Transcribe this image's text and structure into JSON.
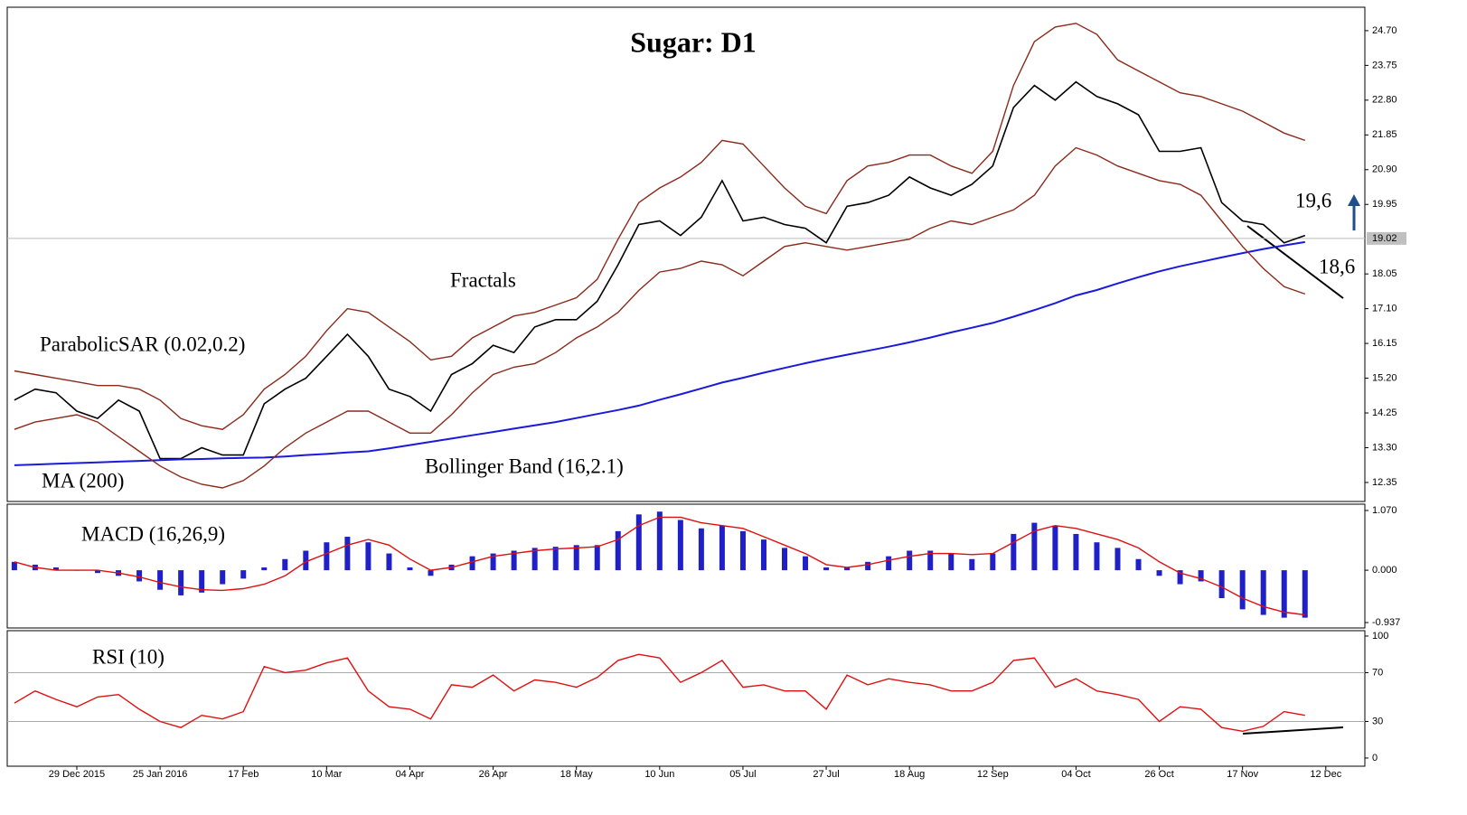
{
  "chart_data": [
    {
      "type": "line",
      "title": "Sugar: D1",
      "annotations": [
        "ParabolicSAR (0.02,0.2)",
        "MA (200)",
        "Fractals",
        "Bollinger Band (16,2.1)",
        "19,6",
        "18,6"
      ],
      "current_price": 19.02,
      "ylim": [
        11.83,
        25.34
      ],
      "yticks": [
        12.35,
        {
          "value": 13.3,
          "label": "13.30"
        },
        14.25,
        {
          "value": 15.2,
          "label": "15.20"
        },
        16.15,
        {
          "value": 17.1,
          "label": "17.10"
        },
        18.05,
        19.95,
        {
          "value": 20.9,
          "label": "20.90"
        },
        21.85,
        {
          "value": 22.8,
          "label": "22.80"
        },
        23.75,
        {
          "value": 24.7,
          "label": "24.70"
        }
      ],
      "series": [
        {
          "name": "Close",
          "color": "#000000",
          "values": [
            14.6,
            14.9,
            14.8,
            14.3,
            14.1,
            14.6,
            14.3,
            13.0,
            13.0,
            13.3,
            13.1,
            13.1,
            14.5,
            14.9,
            15.2,
            15.8,
            16.4,
            15.8,
            14.9,
            14.7,
            14.3,
            15.3,
            15.6,
            16.1,
            15.9,
            16.6,
            16.8,
            16.8,
            17.3,
            18.3,
            19.4,
            19.5,
            19.1,
            19.6,
            20.6,
            19.5,
            19.6,
            19.4,
            19.3,
            18.9,
            19.9,
            20.0,
            20.2,
            20.7,
            20.4,
            20.2,
            20.5,
            21.0,
            22.6,
            23.2,
            22.8,
            23.3,
            22.9,
            22.7,
            22.4,
            21.4,
            21.4,
            21.5,
            20.0,
            19.5,
            19.4,
            18.9,
            19.1,
            null
          ]
        },
        {
          "name": "MA (200)",
          "color": "#1a1adc",
          "values": [
            12.82,
            12.84,
            12.86,
            12.88,
            12.9,
            12.92,
            12.94,
            12.96,
            12.98,
            12.99,
            13.01,
            13.02,
            13.03,
            13.06,
            13.1,
            13.13,
            13.17,
            13.2,
            13.28,
            13.37,
            13.46,
            13.55,
            13.64,
            13.73,
            13.82,
            13.91,
            14.0,
            14.11,
            14.22,
            14.33,
            14.45,
            14.61,
            14.76,
            14.92,
            15.08,
            15.21,
            15.35,
            15.48,
            15.61,
            15.73,
            15.84,
            15.95,
            16.06,
            16.18,
            16.31,
            16.45,
            16.58,
            16.71,
            16.88,
            17.06,
            17.25,
            17.46,
            17.61,
            17.79,
            17.96,
            18.12,
            18.26,
            18.38,
            18.5,
            18.62,
            18.73,
            18.83,
            18.92,
            null
          ]
        },
        {
          "name": "Bollinger Upper",
          "color": "#8b2a1a",
          "values": [
            15.4,
            15.3,
            15.2,
            15.1,
            15.0,
            15.0,
            14.9,
            14.6,
            14.1,
            13.9,
            13.8,
            14.2,
            14.9,
            15.3,
            15.8,
            16.5,
            17.1,
            17.0,
            16.6,
            16.2,
            15.7,
            15.8,
            16.3,
            16.6,
            16.9,
            17.0,
            17.2,
            17.4,
            17.9,
            19.0,
            20.0,
            20.4,
            20.7,
            21.1,
            21.7,
            21.6,
            21.0,
            20.4,
            19.9,
            19.7,
            20.6,
            21.0,
            21.1,
            21.3,
            21.3,
            21.0,
            20.8,
            21.4,
            23.2,
            24.4,
            24.8,
            24.9,
            24.6,
            23.9,
            23.6,
            23.3,
            23.0,
            22.9,
            22.7,
            22.5,
            22.2,
            21.9,
            21.7,
            null
          ]
        },
        {
          "name": "Bollinger Lower",
          "color": "#8b2a1a",
          "values": [
            13.8,
            14.0,
            14.1,
            14.2,
            14.0,
            13.6,
            13.2,
            12.8,
            12.5,
            12.3,
            12.2,
            12.4,
            12.8,
            13.3,
            13.7,
            14.0,
            14.3,
            14.3,
            14.0,
            13.7,
            13.7,
            14.2,
            14.8,
            15.3,
            15.5,
            15.6,
            15.9,
            16.3,
            16.6,
            17.0,
            17.6,
            18.1,
            18.2,
            18.4,
            18.3,
            18.0,
            18.4,
            18.8,
            18.9,
            18.8,
            18.7,
            18.8,
            18.9,
            19.0,
            19.3,
            19.5,
            19.4,
            19.6,
            19.8,
            20.2,
            21.0,
            21.5,
            21.3,
            21.0,
            20.8,
            20.6,
            20.5,
            20.2,
            19.5,
            18.8,
            18.2,
            17.7,
            17.5,
            null
          ]
        }
      ]
    },
    {
      "type": "bar",
      "title": "MACD (16,26,9)",
      "ylim": [
        -1.034,
        1.183
      ],
      "yticks": [
        {
          "value": -0.937,
          "label": "-0.937"
        },
        {
          "value": 0,
          "label": "0.000"
        },
        {
          "value": 1.07,
          "label": "1.070"
        }
      ],
      "series": [
        {
          "name": "MACD",
          "style": "bar",
          "color": "#2020c8",
          "values": [
            0.15,
            0.1,
            0.05,
            0.0,
            -0.05,
            -0.1,
            -0.2,
            -0.35,
            -0.45,
            -0.4,
            -0.25,
            -0.15,
            0.05,
            0.2,
            0.35,
            0.5,
            0.6,
            0.5,
            0.3,
            0.05,
            -0.1,
            0.1,
            0.25,
            0.3,
            0.35,
            0.4,
            0.42,
            0.45,
            0.45,
            0.7,
            1.0,
            1.05,
            0.9,
            0.75,
            0.8,
            0.7,
            0.55,
            0.4,
            0.25,
            0.05,
            0.05,
            0.15,
            0.25,
            0.35,
            0.35,
            0.3,
            0.2,
            0.3,
            0.65,
            0.85,
            0.8,
            0.65,
            0.5,
            0.4,
            0.2,
            -0.1,
            -0.25,
            -0.2,
            -0.5,
            -0.7,
            -0.8,
            -0.85,
            -0.85,
            null
          ]
        },
        {
          "name": "Signal",
          "style": "line",
          "color": "#e01010",
          "values": [
            0.15,
            0.05,
            0.0,
            0.0,
            0.0,
            -0.05,
            -0.12,
            -0.22,
            -0.3,
            -0.35,
            -0.36,
            -0.33,
            -0.25,
            -0.1,
            0.15,
            0.3,
            0.45,
            0.55,
            0.45,
            0.2,
            0.0,
            0.05,
            0.15,
            0.25,
            0.3,
            0.35,
            0.38,
            0.4,
            0.42,
            0.55,
            0.8,
            0.95,
            0.95,
            0.85,
            0.8,
            0.75,
            0.6,
            0.45,
            0.3,
            0.1,
            0.05,
            0.1,
            0.18,
            0.25,
            0.3,
            0.3,
            0.28,
            0.3,
            0.5,
            0.7,
            0.8,
            0.75,
            0.65,
            0.55,
            0.4,
            0.15,
            -0.05,
            -0.15,
            -0.3,
            -0.5,
            -0.65,
            -0.75,
            -0.8,
            null
          ]
        }
      ]
    },
    {
      "type": "line",
      "title": "RSI (10)",
      "ylim": [
        -6.7,
        104.4
      ],
      "yticks": [
        0,
        30,
        70,
        100
      ],
      "categories": [
        null,
        null,
        null,
        "29 Dec 2015",
        null,
        null,
        null,
        "25 Jan 2016",
        null,
        null,
        null,
        "17 Feb",
        null,
        null,
        null,
        "10 Mar",
        null,
        null,
        null,
        "04 Apr",
        null,
        null,
        null,
        "26 Apr",
        null,
        null,
        null,
        "18 May",
        null,
        null,
        null,
        "10 Jun",
        null,
        null,
        null,
        "05 Jul",
        null,
        null,
        null,
        "27 Jul",
        null,
        null,
        null,
        "18 Aug",
        null,
        null,
        null,
        "12 Sep",
        null,
        null,
        null,
        "04 Oct",
        null,
        null,
        null,
        "26 Oct",
        null,
        null,
        null,
        "17 Nov",
        null,
        null,
        null,
        "12 Dec"
      ],
      "series": [
        {
          "name": "RSI",
          "color": "#e01010",
          "values": [
            45,
            55,
            48,
            42,
            50,
            52,
            40,
            30,
            25,
            35,
            32,
            38,
            75,
            70,
            72,
            78,
            82,
            55,
            42,
            40,
            32,
            60,
            58,
            68,
            55,
            64,
            62,
            58,
            66,
            80,
            85,
            82,
            62,
            70,
            80,
            58,
            60,
            55,
            55,
            40,
            68,
            60,
            65,
            62,
            60,
            55,
            55,
            62,
            80,
            82,
            58,
            65,
            55,
            52,
            48,
            30,
            42,
            40,
            25,
            22,
            26,
            38,
            35,
            null
          ]
        }
      ]
    }
  ]
}
